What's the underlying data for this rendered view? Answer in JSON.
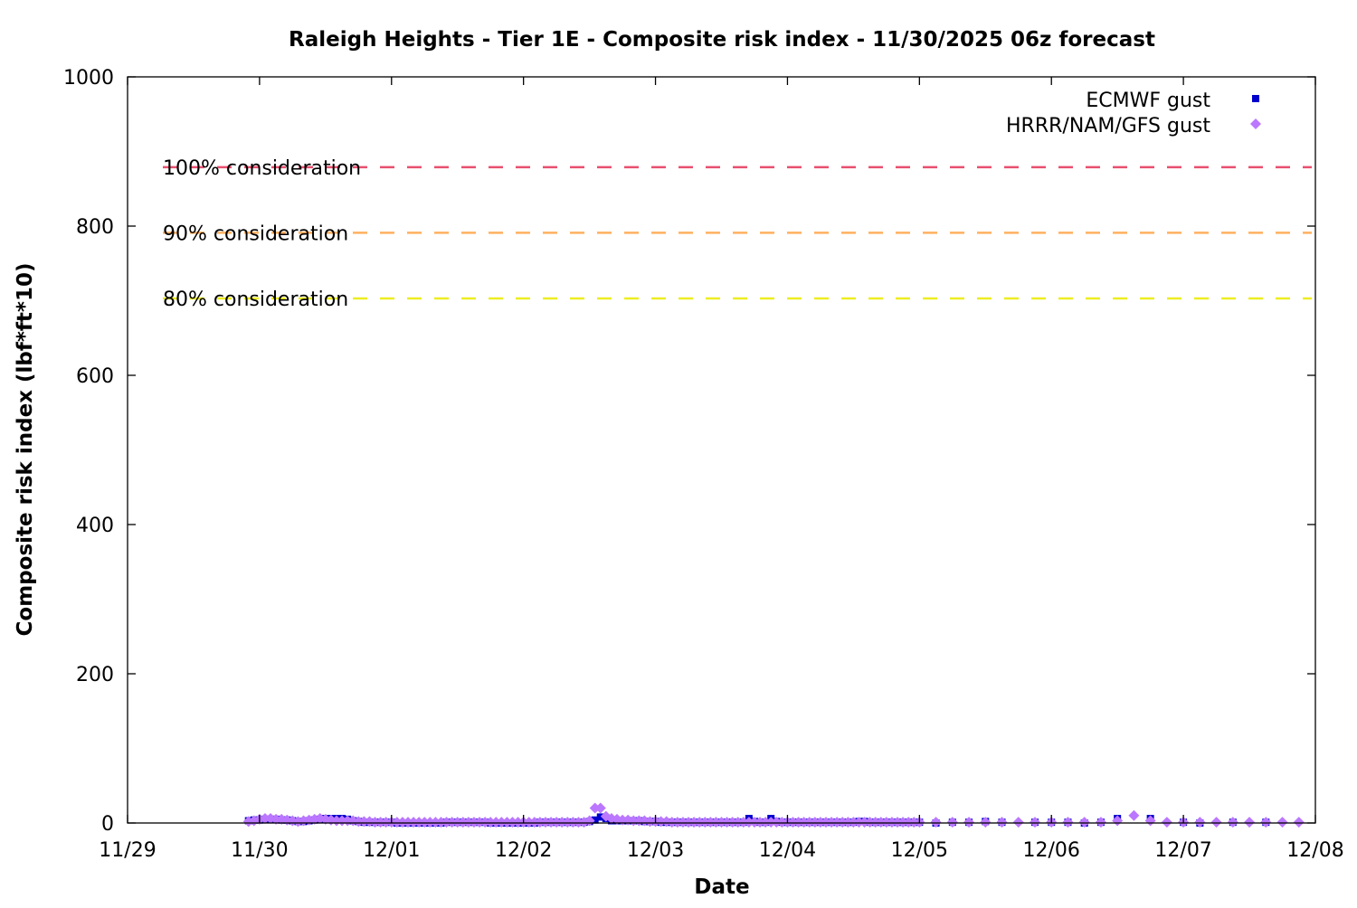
{
  "chart_data": {
    "type": "scatter",
    "title": "Raleigh Heights - Tier 1E - Composite risk index - 11/30/2025 06z forecast",
    "xlabel": "Date",
    "ylabel": "Composite risk index (lbf*ft*10)",
    "xlim": [
      "11/29 00",
      "12/08 00"
    ],
    "ylim": [
      0,
      1000
    ],
    "x_ticks": [
      "11/29",
      "11/30",
      "12/01",
      "12/02",
      "12/03",
      "12/04",
      "12/05",
      "12/06",
      "12/07",
      "12/08"
    ],
    "y_ticks": [
      0,
      200,
      400,
      600,
      800,
      1000
    ],
    "grid": false,
    "legend_position": "top-right",
    "thresholds": [
      {
        "label": "100% consideration",
        "value": 879,
        "color": "#e8506e"
      },
      {
        "label": "90% consideration",
        "value": 791,
        "color": "#ffb060"
      },
      {
        "label": "80% consideration",
        "value": 703,
        "color": "#eeee22"
      }
    ],
    "x": [
      "11/29 22",
      "11/29 23",
      "11/30 00",
      "11/30 01",
      "11/30 02",
      "11/30 03",
      "11/30 04",
      "11/30 05",
      "11/30 06",
      "11/30 07",
      "11/30 08",
      "11/30 09",
      "11/30 10",
      "11/30 11",
      "11/30 12",
      "11/30 13",
      "11/30 14",
      "11/30 15",
      "11/30 16",
      "11/30 17",
      "11/30 18",
      "11/30 19",
      "11/30 20",
      "11/30 21",
      "11/30 22",
      "11/30 23",
      "12/01 00",
      "12/01 01",
      "12/01 02",
      "12/01 03",
      "12/01 04",
      "12/01 05",
      "12/01 06",
      "12/01 07",
      "12/01 08",
      "12/01 09",
      "12/01 10",
      "12/01 11",
      "12/01 12",
      "12/01 13",
      "12/01 14",
      "12/01 15",
      "12/01 16",
      "12/01 17",
      "12/01 18",
      "12/01 19",
      "12/01 20",
      "12/01 21",
      "12/01 22",
      "12/01 23",
      "12/02 00",
      "12/02 01",
      "12/02 02",
      "12/02 03",
      "12/02 04",
      "12/02 05",
      "12/02 06",
      "12/02 07",
      "12/02 08",
      "12/02 09",
      "12/02 10",
      "12/02 11",
      "12/02 12",
      "12/02 13",
      "12/02 14",
      "12/02 15",
      "12/02 16",
      "12/02 17",
      "12/02 18",
      "12/02 19",
      "12/02 20",
      "12/02 21",
      "12/02 22",
      "12/02 23",
      "12/03 00",
      "12/03 01",
      "12/03 02",
      "12/03 03",
      "12/03 04",
      "12/03 05",
      "12/03 06",
      "12/03 07",
      "12/03 08",
      "12/03 09",
      "12/03 10",
      "12/03 11",
      "12/03 12",
      "12/03 13",
      "12/03 14",
      "12/03 15",
      "12/03 16",
      "12/03 17",
      "12/03 18",
      "12/03 19",
      "12/03 20",
      "12/03 21",
      "12/03 22",
      "12/03 23",
      "12/04 00",
      "12/04 01",
      "12/04 02",
      "12/04 03",
      "12/04 04",
      "12/04 05",
      "12/04 06",
      "12/04 07",
      "12/04 08",
      "12/04 09",
      "12/04 10",
      "12/04 11",
      "12/04 12",
      "12/04 13",
      "12/04 14",
      "12/04 15",
      "12/04 16",
      "12/04 17",
      "12/04 18",
      "12/04 19",
      "12/04 20",
      "12/04 21",
      "12/04 22",
      "12/04 23",
      "12/05 00",
      "12/05 03",
      "12/05 06",
      "12/05 09",
      "12/05 12",
      "12/05 15",
      "12/05 18",
      "12/05 21",
      "12/06 00",
      "12/06 03",
      "12/06 06",
      "12/06 09",
      "12/06 12",
      "12/06 15",
      "12/06 18",
      "12/06 21",
      "12/07 00",
      "12/07 03",
      "12/07 06",
      "12/07 09",
      "12/07 12",
      "12/07 15",
      "12/07 18",
      "12/07 21"
    ],
    "series": [
      {
        "name": "ECMWF gust",
        "color": "#0000cc",
        "marker": "square",
        "values": [
          3,
          4,
          4,
          5,
          5,
          5,
          4,
          4,
          3,
          2,
          2,
          3,
          4,
          5,
          6,
          6,
          6,
          6,
          5,
          3,
          2,
          1,
          1,
          1,
          1,
          1,
          1,
          0,
          0,
          0,
          0,
          0,
          0,
          0,
          0,
          0,
          1,
          1,
          1,
          1,
          1,
          1,
          1,
          1,
          0,
          0,
          0,
          0,
          0,
          0,
          0,
          0,
          0,
          1,
          1,
          1,
          1,
          1,
          1,
          1,
          1,
          1,
          2,
          4,
          8,
          6,
          3,
          3,
          3,
          3,
          3,
          3,
          2,
          2,
          2,
          1,
          1,
          1,
          1,
          1,
          1,
          1,
          1,
          1,
          1,
          1,
          1,
          1,
          1,
          1,
          1,
          6,
          2,
          1,
          1,
          6,
          2,
          1,
          1,
          1,
          1,
          1,
          1,
          1,
          1,
          1,
          1,
          1,
          1,
          1,
          1,
          2,
          2,
          1,
          1,
          1,
          1,
          1,
          1,
          1,
          1,
          1,
          1,
          0,
          1,
          1,
          2,
          1,
          null,
          1,
          1,
          1,
          0,
          1,
          6,
          null,
          6,
          null,
          1,
          0,
          null,
          1,
          null,
          1,
          null,
          null
        ]
      },
      {
        "name": "HRRR/NAM/GFS gust",
        "color": "#bb77ff",
        "marker": "diamond",
        "values": [
          2,
          3,
          5,
          6,
          6,
          5,
          5,
          4,
          3,
          2,
          3,
          4,
          5,
          6,
          5,
          4,
          3,
          3,
          3,
          3,
          2,
          2,
          2,
          1,
          1,
          1,
          1,
          1,
          1,
          1,
          1,
          1,
          1,
          1,
          1,
          1,
          1,
          1,
          1,
          1,
          1,
          1,
          1,
          1,
          1,
          1,
          1,
          1,
          1,
          1,
          1,
          1,
          1,
          1,
          1,
          1,
          1,
          1,
          1,
          1,
          1,
          1,
          3,
          20,
          20,
          9,
          6,
          5,
          4,
          4,
          3,
          3,
          3,
          2,
          2,
          2,
          2,
          1,
          1,
          1,
          1,
          1,
          1,
          1,
          1,
          1,
          1,
          1,
          1,
          1,
          1,
          1,
          1,
          1,
          1,
          1,
          1,
          1,
          1,
          1,
          1,
          1,
          1,
          1,
          1,
          1,
          1,
          1,
          1,
          1,
          1,
          1,
          1,
          1,
          1,
          1,
          1,
          1,
          1,
          1,
          1,
          1,
          1,
          1,
          1,
          1,
          1,
          1,
          1,
          1,
          1,
          1,
          1,
          1,
          3,
          10,
          3,
          1,
          1,
          1,
          1,
          1,
          1,
          1,
          1,
          1
        ]
      }
    ]
  }
}
